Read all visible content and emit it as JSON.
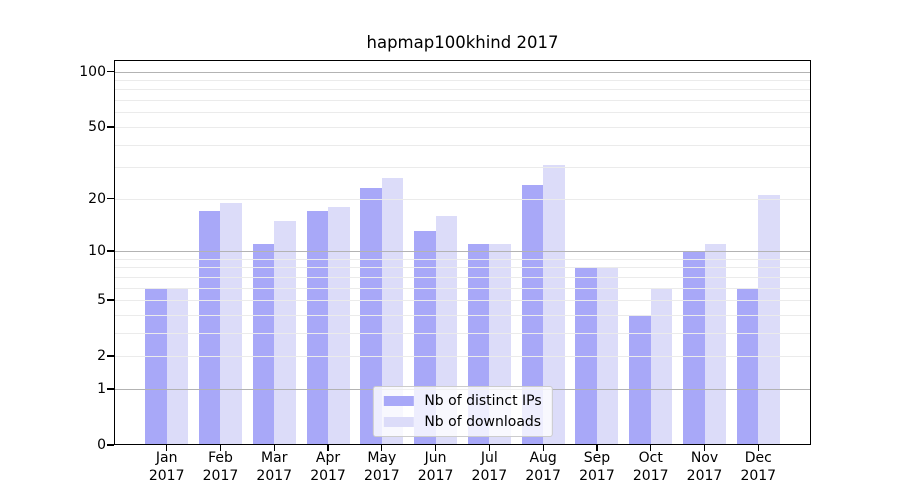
{
  "chart_data": {
    "type": "bar",
    "title": "hapmap100khind 2017",
    "categories": [
      {
        "month": "Jan",
        "year": "2017"
      },
      {
        "month": "Feb",
        "year": "2017"
      },
      {
        "month": "Mar",
        "year": "2017"
      },
      {
        "month": "Apr",
        "year": "2017"
      },
      {
        "month": "May",
        "year": "2017"
      },
      {
        "month": "Jun",
        "year": "2017"
      },
      {
        "month": "Jul",
        "year": "2017"
      },
      {
        "month": "Aug",
        "year": "2017"
      },
      {
        "month": "Sep",
        "year": "2017"
      },
      {
        "month": "Oct",
        "year": "2017"
      },
      {
        "month": "Nov",
        "year": "2017"
      },
      {
        "month": "Dec",
        "year": "2017"
      }
    ],
    "series": [
      {
        "name": "Nb of distinct IPs",
        "color": "#a8a8f8",
        "values": [
          6,
          17,
          11,
          17,
          23,
          13,
          11,
          24,
          8,
          4,
          10,
          6
        ]
      },
      {
        "name": "Nb of downloads",
        "color": "#dcdcf9",
        "values": [
          6,
          19,
          15,
          18,
          26,
          16,
          11,
          31,
          8,
          6,
          11,
          21
        ]
      }
    ],
    "y_axis": {
      "scale": "log1p",
      "ticks": [
        0,
        1,
        2,
        5,
        10,
        20,
        50,
        100
      ],
      "major_gridlines": [
        1,
        10,
        100
      ],
      "minor_gridlines": [
        2,
        3,
        4,
        5,
        6,
        7,
        8,
        9,
        20,
        30,
        40,
        50,
        60,
        70,
        80,
        90
      ],
      "top_value": 117
    },
    "grid": "on",
    "legend_position": "lower center inside",
    "colors": {
      "grid_major": "#b3b3b3",
      "grid_minor": "#ebebeb",
      "axis": "#000000",
      "background": "#ffffff"
    }
  }
}
